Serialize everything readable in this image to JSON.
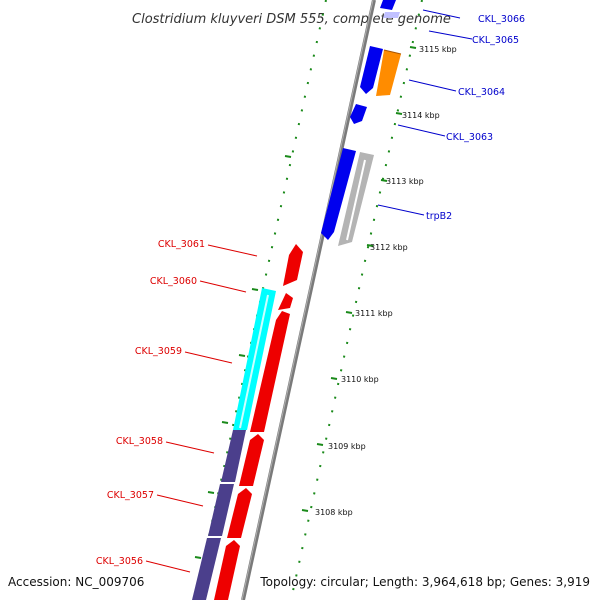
{
  "title": "Clostridium kluyveri DSM 555, complete genome",
  "accession": "Accession: NC_009706",
  "summary": "Topology: circular; Length: 3,964,618 bp; Genes: 3,919",
  "colors": {
    "backbone": "#8c8c8c",
    "tick": "#1a8a1a",
    "forward_label": "#0000cc",
    "reverse_label": "#dd0000",
    "forward_gene": "#0000ee",
    "reverse_gene": "#ee0000",
    "orange_gene": "#ff8c00",
    "gray_gene": "#b4b4b4",
    "cyan_gene": "#00ffff",
    "purple_gene": "#4b3f8c"
  },
  "ticks": [
    "3115 kbp",
    "3114 kbp",
    "3113 kbp",
    "3112 kbp",
    "3111 kbp",
    "3110 kbp",
    "3109 kbp",
    "3108 kbp"
  ],
  "forward_genes": [
    "CKL_3066",
    "CKL_3065",
    "CKL_3064",
    "CKL_3063",
    "trpB2"
  ],
  "reverse_genes": [
    "CKL_3061",
    "CKL_3060",
    "CKL_3059",
    "CKL_3058",
    "CKL_3057",
    "CKL_3056"
  ]
}
